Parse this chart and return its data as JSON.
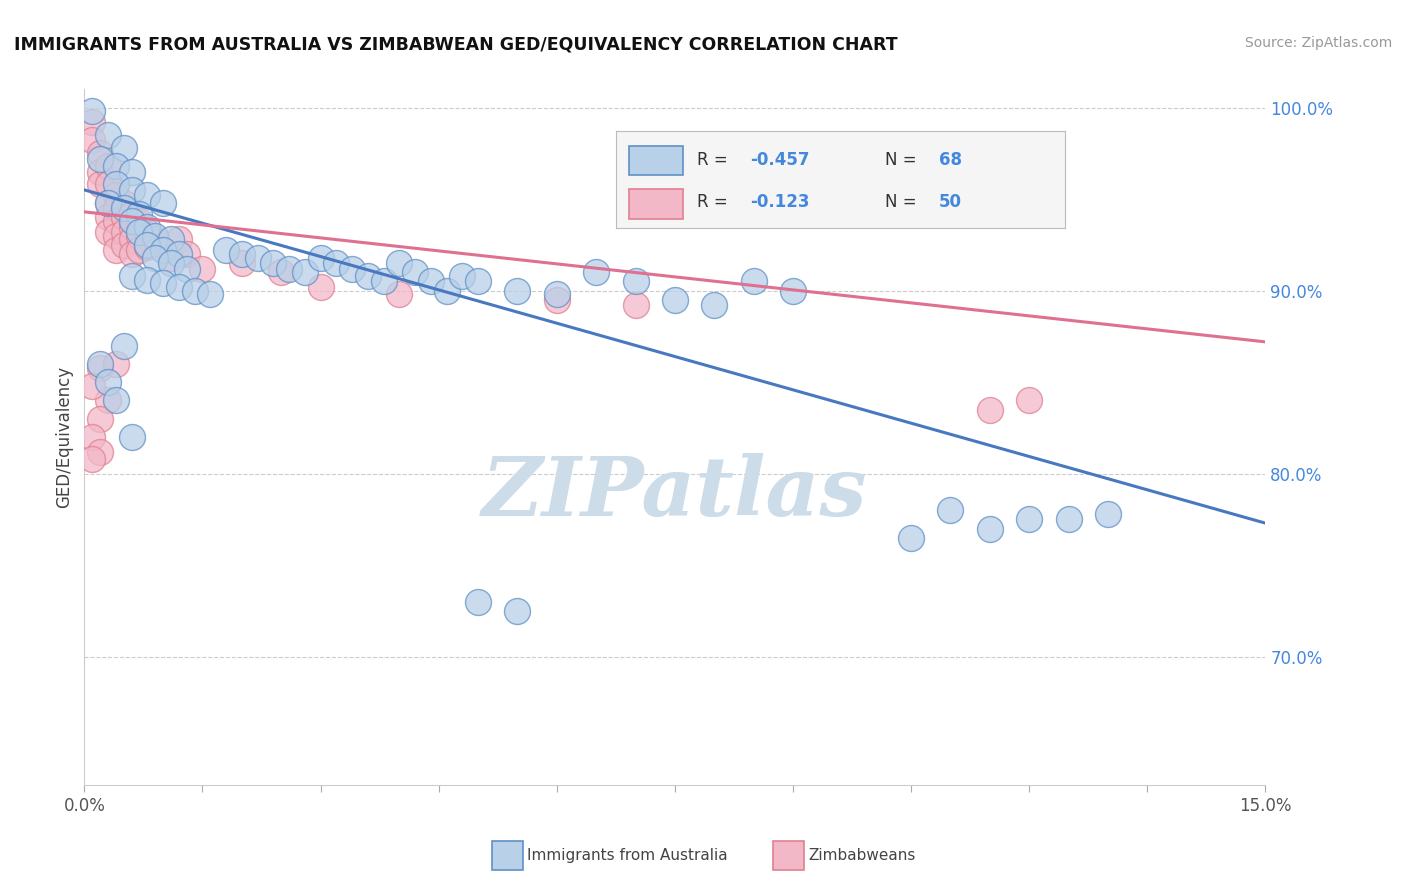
{
  "title": "IMMIGRANTS FROM AUSTRALIA VS ZIMBABWEAN GED/EQUIVALENCY CORRELATION CHART",
  "source_text": "Source: ZipAtlas.com",
  "ylabel": "GED/Equivalency",
  "x_min": 0.0,
  "x_max": 0.15,
  "y_min": 0.63,
  "y_max": 1.01,
  "y_ticks": [
    0.7,
    0.8,
    0.9,
    1.0
  ],
  "y_tick_labels": [
    "70.0%",
    "80.0%",
    "90.0%",
    "100.0%"
  ],
  "blue_R_val": "-0.457",
  "blue_N_val": "68",
  "pink_R_val": "-0.123",
  "pink_N_val": "50",
  "blue_fill": "#b8d0e8",
  "pink_fill": "#f2b8c8",
  "blue_edge": "#6090c8",
  "pink_edge": "#e08090",
  "blue_line": "#4878c0",
  "pink_line": "#e07090",
  "num_color": "#4488dd",
  "watermark": "ZIPatlas",
  "watermark_color": "#ccdce8",
  "blue_trend_x": [
    0.0,
    0.15
  ],
  "blue_trend_y": [
    0.955,
    0.773
  ],
  "pink_trend_x": [
    0.0,
    0.15
  ],
  "pink_trend_y": [
    0.943,
    0.872
  ],
  "blue_scatter": [
    [
      0.001,
      0.998
    ],
    [
      0.003,
      0.985
    ],
    [
      0.005,
      0.978
    ],
    [
      0.002,
      0.972
    ],
    [
      0.004,
      0.968
    ],
    [
      0.006,
      0.965
    ],
    [
      0.004,
      0.958
    ],
    [
      0.006,
      0.955
    ],
    [
      0.008,
      0.952
    ],
    [
      0.003,
      0.948
    ],
    [
      0.005,
      0.945
    ],
    [
      0.007,
      0.942
    ],
    [
      0.006,
      0.938
    ],
    [
      0.008,
      0.935
    ],
    [
      0.01,
      0.948
    ],
    [
      0.007,
      0.932
    ],
    [
      0.009,
      0.93
    ],
    [
      0.011,
      0.928
    ],
    [
      0.008,
      0.925
    ],
    [
      0.01,
      0.922
    ],
    [
      0.012,
      0.92
    ],
    [
      0.009,
      0.918
    ],
    [
      0.011,
      0.915
    ],
    [
      0.013,
      0.912
    ],
    [
      0.006,
      0.908
    ],
    [
      0.008,
      0.906
    ],
    [
      0.01,
      0.904
    ],
    [
      0.012,
      0.902
    ],
    [
      0.014,
      0.9
    ],
    [
      0.016,
      0.898
    ],
    [
      0.018,
      0.922
    ],
    [
      0.02,
      0.92
    ],
    [
      0.022,
      0.918
    ],
    [
      0.024,
      0.915
    ],
    [
      0.026,
      0.912
    ],
    [
      0.028,
      0.91
    ],
    [
      0.03,
      0.918
    ],
    [
      0.032,
      0.915
    ],
    [
      0.034,
      0.912
    ],
    [
      0.036,
      0.908
    ],
    [
      0.038,
      0.905
    ],
    [
      0.04,
      0.915
    ],
    [
      0.042,
      0.91
    ],
    [
      0.044,
      0.905
    ],
    [
      0.046,
      0.9
    ],
    [
      0.048,
      0.908
    ],
    [
      0.05,
      0.905
    ],
    [
      0.055,
      0.9
    ],
    [
      0.06,
      0.898
    ],
    [
      0.065,
      0.91
    ],
    [
      0.07,
      0.905
    ],
    [
      0.075,
      0.895
    ],
    [
      0.08,
      0.892
    ],
    [
      0.085,
      0.905
    ],
    [
      0.09,
      0.9
    ],
    [
      0.002,
      0.86
    ],
    [
      0.003,
      0.85
    ],
    [
      0.004,
      0.84
    ],
    [
      0.005,
      0.87
    ],
    [
      0.006,
      0.82
    ],
    [
      0.05,
      0.73
    ],
    [
      0.055,
      0.725
    ],
    [
      0.11,
      0.78
    ],
    [
      0.125,
      0.775
    ],
    [
      0.13,
      0.778
    ],
    [
      0.12,
      0.775
    ],
    [
      0.115,
      0.77
    ],
    [
      0.105,
      0.765
    ]
  ],
  "pink_scatter": [
    [
      0.001,
      0.992
    ],
    [
      0.001,
      0.982
    ],
    [
      0.002,
      0.975
    ],
    [
      0.002,
      0.965
    ],
    [
      0.002,
      0.958
    ],
    [
      0.003,
      0.968
    ],
    [
      0.003,
      0.958
    ],
    [
      0.003,
      0.948
    ],
    [
      0.003,
      0.94
    ],
    [
      0.003,
      0.932
    ],
    [
      0.004,
      0.952
    ],
    [
      0.004,
      0.945
    ],
    [
      0.004,
      0.938
    ],
    [
      0.004,
      0.93
    ],
    [
      0.004,
      0.922
    ],
    [
      0.005,
      0.948
    ],
    [
      0.005,
      0.94
    ],
    [
      0.005,
      0.932
    ],
    [
      0.005,
      0.925
    ],
    [
      0.006,
      0.942
    ],
    [
      0.006,
      0.935
    ],
    [
      0.006,
      0.928
    ],
    [
      0.006,
      0.92
    ],
    [
      0.007,
      0.938
    ],
    [
      0.007,
      0.93
    ],
    [
      0.007,
      0.922
    ],
    [
      0.008,
      0.932
    ],
    [
      0.008,
      0.924
    ],
    [
      0.009,
      0.928
    ],
    [
      0.01,
      0.922
    ],
    [
      0.011,
      0.918
    ],
    [
      0.012,
      0.928
    ],
    [
      0.013,
      0.92
    ],
    [
      0.015,
      0.912
    ],
    [
      0.02,
      0.915
    ],
    [
      0.025,
      0.91
    ],
    [
      0.03,
      0.902
    ],
    [
      0.04,
      0.898
    ],
    [
      0.06,
      0.895
    ],
    [
      0.07,
      0.892
    ],
    [
      0.002,
      0.858
    ],
    [
      0.003,
      0.84
    ],
    [
      0.004,
      0.86
    ],
    [
      0.001,
      0.848
    ],
    [
      0.002,
      0.83
    ],
    [
      0.001,
      0.82
    ],
    [
      0.002,
      0.812
    ],
    [
      0.001,
      0.808
    ],
    [
      0.12,
      0.84
    ],
    [
      0.115,
      0.835
    ]
  ]
}
